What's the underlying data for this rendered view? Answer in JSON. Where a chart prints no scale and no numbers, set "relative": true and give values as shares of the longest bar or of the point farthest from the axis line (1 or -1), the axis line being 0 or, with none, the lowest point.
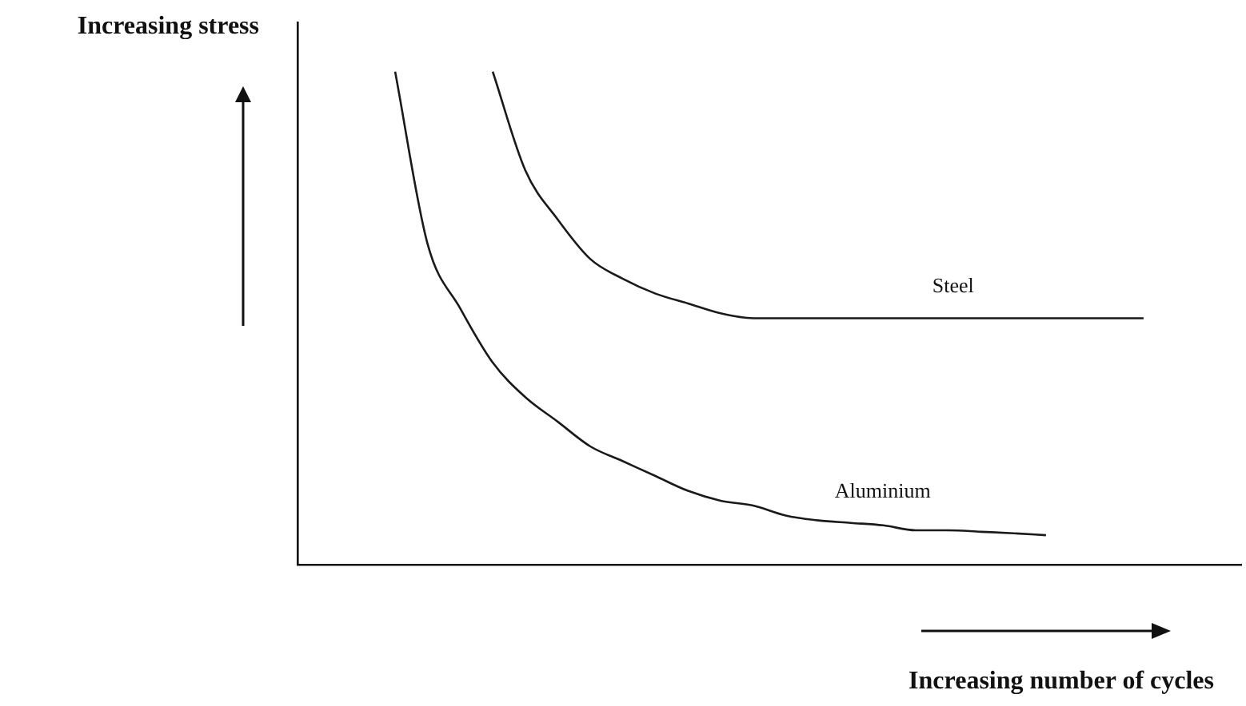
{
  "chart_data": {
    "type": "line",
    "relative": true,
    "grid": false,
    "legend": false,
    "marker": "none",
    "line_style": "solid",
    "xlabel": "Increasing number of cycles",
    "ylabel": "Increasing stress",
    "categories": [
      null,
      null,
      null,
      null,
      null,
      null,
      null,
      null,
      null,
      null,
      null,
      null,
      null,
      null,
      null,
      null,
      null,
      null,
      null,
      null,
      null,
      null,
      null,
      null,
      null,
      null,
      null,
      null,
      null,
      null
    ],
    "series": [
      {
        "name": "Steel",
        "color": "#1a1a1a",
        "values": [
          null,
          null,
          null,
          null,
          null,
          null,
          1.0,
          0.8,
          0.7,
          0.62,
          0.58,
          0.55,
          0.53,
          0.51,
          0.5,
          0.5,
          0.5,
          0.5,
          0.5,
          0.5,
          0.5,
          0.5,
          0.5,
          0.5,
          0.5,
          0.5,
          0.5,
          null,
          null,
          null
        ]
      },
      {
        "name": "Aluminium",
        "color": "#1a1a1a",
        "values": [
          null,
          null,
          null,
          1.0,
          0.65,
          0.52,
          0.41,
          0.34,
          0.29,
          0.24,
          0.21,
          0.18,
          0.15,
          0.13,
          0.12,
          0.1,
          0.09,
          0.085,
          0.08,
          0.07,
          0.07,
          0.067,
          0.064,
          0.06,
          null,
          null,
          null,
          null,
          null,
          null
        ]
      }
    ]
  }
}
